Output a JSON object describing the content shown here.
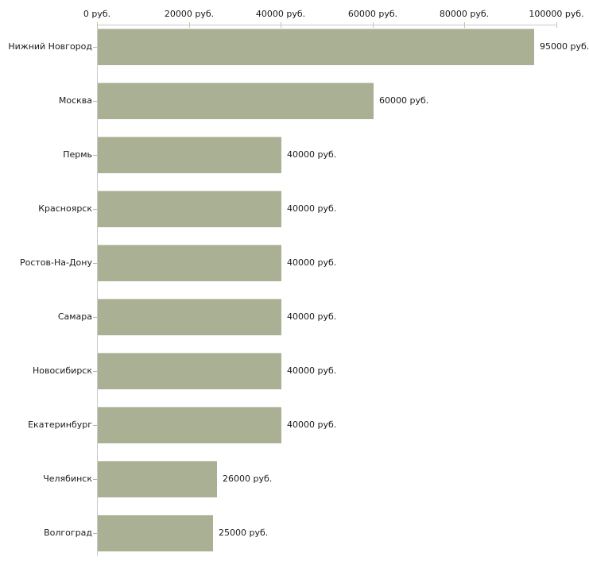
{
  "chart_data": {
    "type": "bar",
    "orientation": "horizontal",
    "title": "",
    "unit": "руб.",
    "categories": [
      "Нижний Новгород",
      "Москва",
      "Пермь",
      "Красноярск",
      "Ростов-На-Дону",
      "Самара",
      "Новосибирск",
      "Екатеринбург",
      "Челябинск",
      "Волгоград"
    ],
    "values": [
      95000,
      60000,
      40000,
      40000,
      40000,
      40000,
      40000,
      40000,
      26000,
      25000
    ],
    "value_labels": [
      "95000 руб.",
      "60000 руб.",
      "40000 руб.",
      "40000 руб.",
      "40000 руб.",
      "40000 руб.",
      "40000 руб.",
      "40000 руб.",
      "26000 руб.",
      "25000 руб."
    ],
    "x_ticks": [
      {
        "value": 0,
        "label": "0 руб."
      },
      {
        "value": 20000,
        "label": "20000 руб."
      },
      {
        "value": 40000,
        "label": "40000 руб."
      },
      {
        "value": 60000,
        "label": "60000 руб."
      },
      {
        "value": 80000,
        "label": "80000 руб."
      },
      {
        "value": 100000,
        "label": "100000 руб."
      }
    ],
    "xlim": [
      0,
      100000
    ],
    "grid": false,
    "legend": false,
    "colors": {
      "bar_fill": "#aab094",
      "bar_top_edge": "#c9ccba",
      "axis_line": "#cbc9c9",
      "axis_tick": "#c6c89e",
      "category_tick": "#b6b8a0",
      "text": "#1a1a1a",
      "background": "#ffffff"
    }
  }
}
